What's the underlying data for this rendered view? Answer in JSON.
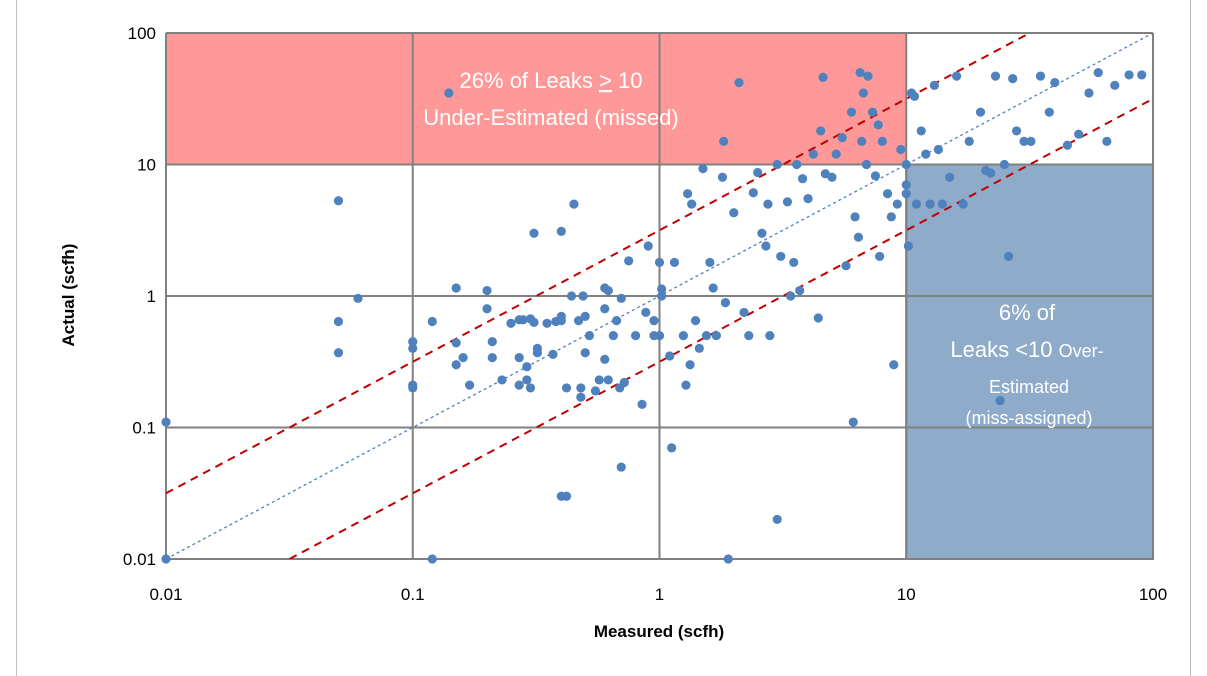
{
  "chart_data": {
    "type": "scatter",
    "title": "",
    "xlabel": "Measured (scfh)",
    "ylabel": "Actual (scfh)",
    "xscale": "log",
    "yscale": "log",
    "xlim": [
      0.01,
      100
    ],
    "ylim": [
      0.01,
      100
    ],
    "grid": true,
    "x_ticks": [
      "0.01",
      "0.1",
      "1",
      "10",
      "100"
    ],
    "y_ticks": [
      "0.01",
      "0.1",
      "1",
      "10",
      "100"
    ],
    "colors": {
      "points": "#4f81bd",
      "under_region": "#ff9999",
      "over_region": "#8eabc9",
      "limit_lines": "#c00000",
      "identity_line": "#4f81bd",
      "grid": "#808080"
    },
    "regions": [
      {
        "label": "under",
        "x": [
          0.01,
          10
        ],
        "y": [
          10,
          100
        ]
      },
      {
        "label": "over",
        "x": [
          10,
          100
        ],
        "y": [
          0.01,
          10
        ]
      }
    ],
    "reference_lines": [
      {
        "style": "dotted",
        "factor": 1
      },
      {
        "style": "dashed",
        "factor": 3.16
      },
      {
        "style": "dashed",
        "factor": 0.316
      }
    ],
    "annotations": {
      "under": {
        "line1_prefix": "26% of Leaks ",
        "line1_op": ">",
        "line1_value": " 10",
        "line2": "Under-Estimated (missed)"
      },
      "over": {
        "line1": "6% of",
        "line2_main": "Leaks <10 ",
        "line2_small": "Over-",
        "line3": "Estimated",
        "line4": "(miss-assigned)"
      }
    },
    "points": [
      [
        0.01,
        0.01
      ],
      [
        0.01,
        0.11
      ],
      [
        0.05,
        5.3
      ],
      [
        0.05,
        0.64
      ],
      [
        0.05,
        0.37
      ],
      [
        0.06,
        0.96
      ],
      [
        0.1,
        0.45
      ],
      [
        0.1,
        0.4
      ],
      [
        0.1,
        0.21
      ],
      [
        0.1,
        0.2
      ],
      [
        0.12,
        0.64
      ],
      [
        0.12,
        0.01
      ],
      [
        0.14,
        35
      ],
      [
        0.15,
        1.15
      ],
      [
        0.15,
        0.44
      ],
      [
        0.15,
        0.3
      ],
      [
        0.16,
        0.34
      ],
      [
        0.17,
        0.21
      ],
      [
        0.2,
        1.1
      ],
      [
        0.2,
        0.8
      ],
      [
        0.21,
        0.45
      ],
      [
        0.21,
        0.34
      ],
      [
        0.23,
        0.23
      ],
      [
        0.25,
        0.62
      ],
      [
        0.27,
        0.66
      ],
      [
        0.27,
        0.34
      ],
      [
        0.27,
        0.21
      ],
      [
        0.28,
        0.66
      ],
      [
        0.29,
        0.29
      ],
      [
        0.29,
        0.23
      ],
      [
        0.3,
        0.67
      ],
      [
        0.3,
        0.2
      ],
      [
        0.31,
        3.0
      ],
      [
        0.31,
        0.63
      ],
      [
        0.32,
        0.4
      ],
      [
        0.32,
        0.37
      ],
      [
        0.35,
        0.62
      ],
      [
        0.37,
        0.36
      ],
      [
        0.38,
        0.64
      ],
      [
        0.4,
        3.1
      ],
      [
        0.4,
        0.7
      ],
      [
        0.4,
        0.65
      ],
      [
        0.4,
        0.03
      ],
      [
        0.42,
        0.2
      ],
      [
        0.42,
        0.03
      ],
      [
        0.44,
        1.0
      ],
      [
        0.45,
        5.0
      ],
      [
        0.47,
        0.65
      ],
      [
        0.48,
        0.2
      ],
      [
        0.48,
        0.17
      ],
      [
        0.49,
        1.0
      ],
      [
        0.5,
        0.7
      ],
      [
        0.5,
        0.37
      ],
      [
        0.52,
        0.5
      ],
      [
        0.55,
        0.19
      ],
      [
        0.57,
        0.23
      ],
      [
        0.6,
        1.15
      ],
      [
        0.6,
        0.8
      ],
      [
        0.6,
        0.33
      ],
      [
        0.62,
        1.1
      ],
      [
        0.62,
        0.23
      ],
      [
        0.65,
        0.5
      ],
      [
        0.67,
        0.65
      ],
      [
        0.69,
        0.2
      ],
      [
        0.7,
        0.96
      ],
      [
        0.7,
        0.05
      ],
      [
        0.72,
        0.22
      ],
      [
        0.75,
        1.85
      ],
      [
        0.8,
        0.5
      ],
      [
        0.85,
        0.15
      ],
      [
        0.88,
        0.75
      ],
      [
        0.9,
        2.4
      ],
      [
        0.95,
        0.5
      ],
      [
        0.95,
        0.65
      ],
      [
        1.0,
        1.8
      ],
      [
        1.0,
        0.5
      ],
      [
        1.02,
        1.13
      ],
      [
        1.02,
        1.0
      ],
      [
        1.1,
        0.35
      ],
      [
        1.12,
        0.07
      ],
      [
        1.15,
        1.8
      ],
      [
        1.25,
        0.5
      ],
      [
        1.28,
        0.21
      ],
      [
        1.3,
        6.0
      ],
      [
        1.33,
        0.3
      ],
      [
        1.35,
        5.0
      ],
      [
        1.4,
        0.65
      ],
      [
        1.45,
        0.4
      ],
      [
        1.5,
        9.3
      ],
      [
        1.55,
        0.5
      ],
      [
        1.6,
        1.8
      ],
      [
        1.65,
        1.15
      ],
      [
        1.7,
        0.5
      ],
      [
        1.8,
        8.0
      ],
      [
        1.82,
        15
      ],
      [
        1.85,
        0.89
      ],
      [
        1.9,
        0.01
      ],
      [
        2.0,
        4.3
      ],
      [
        2.1,
        42
      ],
      [
        2.2,
        0.75
      ],
      [
        2.3,
        0.5
      ],
      [
        2.4,
        6.1
      ],
      [
        2.5,
        8.7
      ],
      [
        2.6,
        3.0
      ],
      [
        2.7,
        2.4
      ],
      [
        2.75,
        5.0
      ],
      [
        2.8,
        0.5
      ],
      [
        3.0,
        10.0
      ],
      [
        3.0,
        0.02
      ],
      [
        3.1,
        2.0
      ],
      [
        3.3,
        5.2
      ],
      [
        3.4,
        1.0
      ],
      [
        3.5,
        1.8
      ],
      [
        3.6,
        10.0
      ],
      [
        3.7,
        1.1
      ],
      [
        3.8,
        7.8
      ],
      [
        4.0,
        5.5
      ],
      [
        4.2,
        12
      ],
      [
        4.4,
        0.68
      ],
      [
        4.5,
        18
      ],
      [
        4.6,
        46
      ],
      [
        4.7,
        8.5
      ],
      [
        5.0,
        8.0
      ],
      [
        5.2,
        12
      ],
      [
        5.5,
        16
      ],
      [
        5.7,
        1.7
      ],
      [
        6.0,
        25
      ],
      [
        6.1,
        0.11
      ],
      [
        6.2,
        4.0
      ],
      [
        6.4,
        2.8
      ],
      [
        6.5,
        50
      ],
      [
        6.6,
        15
      ],
      [
        6.7,
        35
      ],
      [
        6.9,
        10
      ],
      [
        7.0,
        47
      ],
      [
        7.3,
        25
      ],
      [
        7.5,
        8.2
      ],
      [
        7.7,
        20
      ],
      [
        7.8,
        2.0
      ],
      [
        8.0,
        15
      ],
      [
        8.4,
        6.0
      ],
      [
        8.7,
        4.0
      ],
      [
        8.9,
        0.3
      ],
      [
        9.2,
        5.0
      ],
      [
        9.5,
        13
      ],
      [
        10.0,
        10
      ],
      [
        10.0,
        7.0
      ],
      [
        10.0,
        6.0
      ],
      [
        10.2,
        2.4
      ],
      [
        10.5,
        35
      ],
      [
        10.8,
        33
      ],
      [
        11.0,
        5.0
      ],
      [
        11.5,
        18
      ],
      [
        12,
        12
      ],
      [
        12.5,
        5.0
      ],
      [
        13,
        40
      ],
      [
        13.5,
        13
      ],
      [
        14,
        5.0
      ],
      [
        15,
        8.0
      ],
      [
        16,
        47
      ],
      [
        17,
        5.0
      ],
      [
        18,
        15
      ],
      [
        20,
        25
      ],
      [
        21,
        9.0
      ],
      [
        22,
        8.6
      ],
      [
        23,
        47
      ],
      [
        24,
        0.16
      ],
      [
        25,
        10
      ],
      [
        26,
        2.0
      ],
      [
        27,
        45
      ],
      [
        28,
        18
      ],
      [
        30,
        15
      ],
      [
        32,
        15
      ],
      [
        35,
        47
      ],
      [
        38,
        25
      ],
      [
        40,
        42
      ],
      [
        45,
        14
      ],
      [
        50,
        17
      ],
      [
        55,
        35
      ],
      [
        60,
        50
      ],
      [
        65,
        15
      ],
      [
        70,
        40
      ],
      [
        80,
        48
      ],
      [
        90,
        48
      ]
    ]
  }
}
